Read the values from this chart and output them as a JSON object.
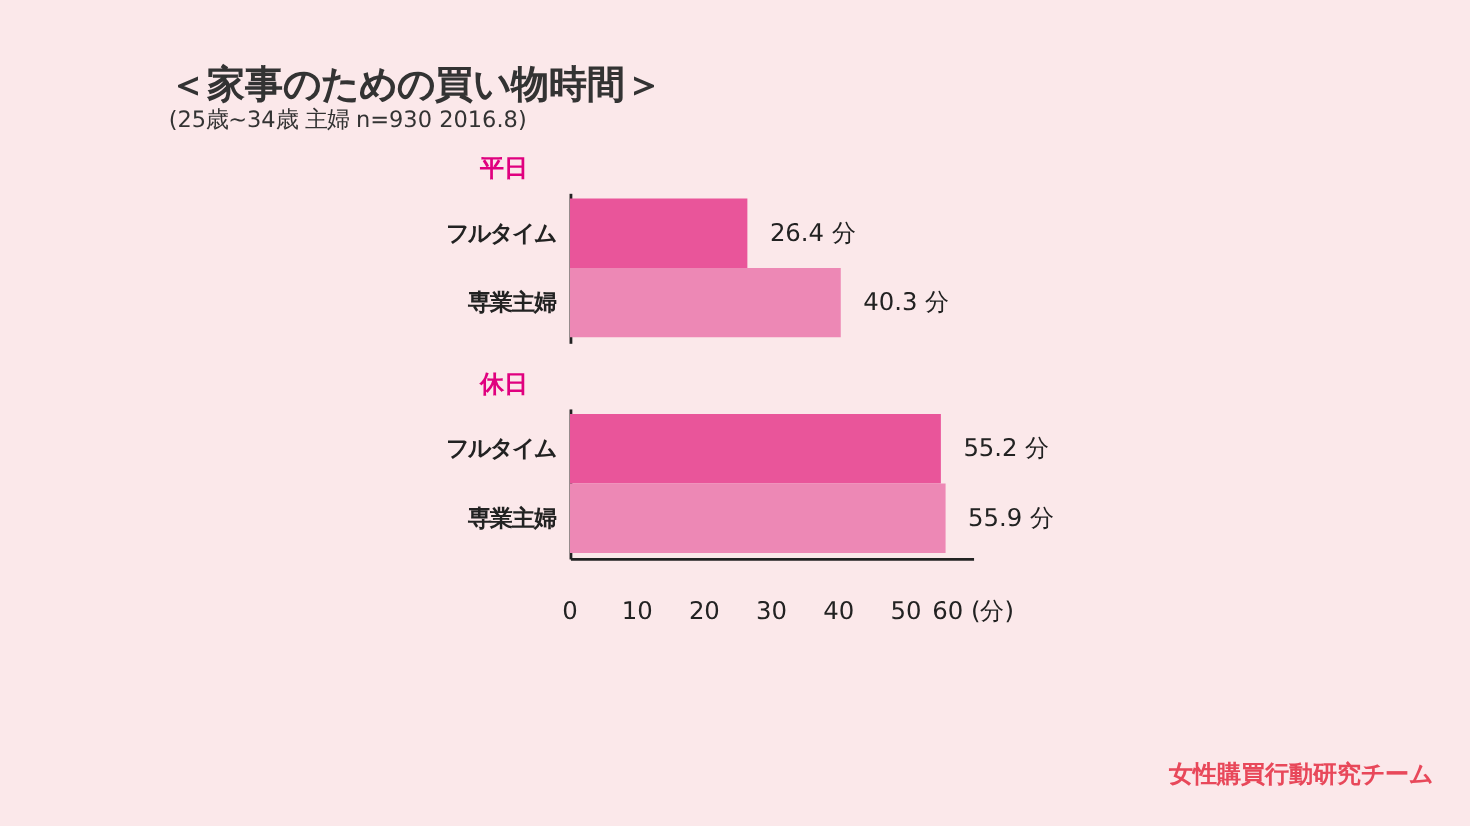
{
  "chart_data": [
    {
      "type": "bar",
      "orientation": "horizontal",
      "title": "平日",
      "annotations": [
        "＜家事のための買い物時間＞",
        "(25歳~34歳 主婦 n=930 2016.8)"
      ],
      "categories": [
        "フルタイム",
        "専業主婦"
      ],
      "values": [
        26.4,
        40.3
      ],
      "colors": [
        "#e9559a",
        "#ed88b5"
      ],
      "value_labels": [
        "26.4 分",
        "40.3 分"
      ],
      "xlim": [
        0,
        60
      ],
      "tick_labels": "y",
      "grid": false
    },
    {
      "type": "bar",
      "orientation": "horizontal",
      "title": "休日",
      "annotations": [
        "女性購買行動研究チーム"
      ],
      "categories": [
        "フルタイム",
        "専業主婦"
      ],
      "values": [
        55.2,
        55.9
      ],
      "colors": [
        "#e9559a",
        "#ed88b5"
      ],
      "value_labels": [
        "55.2 分",
        "55.9 分"
      ],
      "xlim": [
        0,
        60
      ],
      "xticks": [
        0,
        10,
        20,
        30,
        40,
        50,
        {
          "value": 60,
          "label": "60 (分)"
        }
      ],
      "grid": false
    }
  ]
}
